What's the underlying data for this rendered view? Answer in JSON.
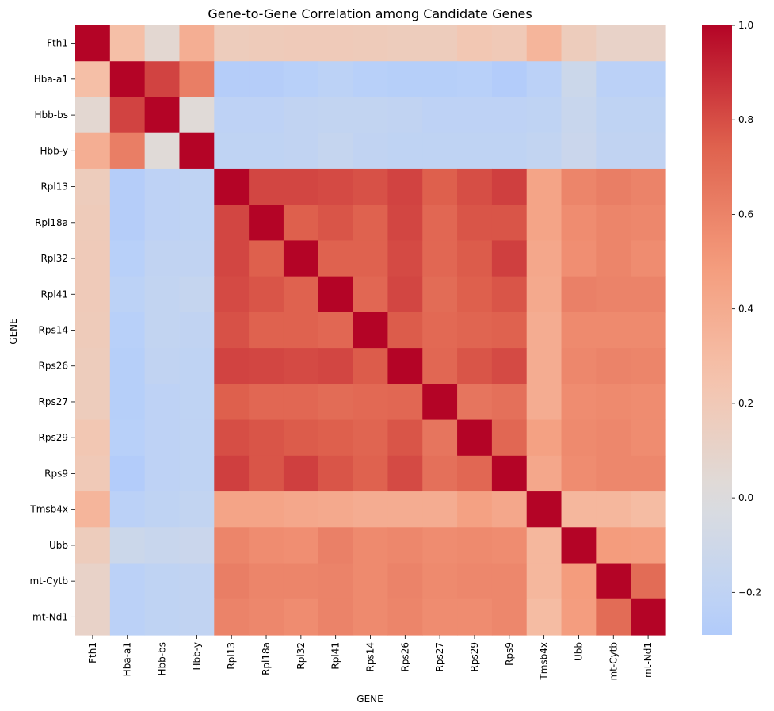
{
  "chart_data": {
    "type": "heatmap",
    "title": "Gene-to-Gene Correlation among Candidate Genes",
    "xlabel": "GENE",
    "ylabel": "GENE",
    "colormap": "coolwarm",
    "vmin": -0.29,
    "vmax": 1.0,
    "colorbar_ticks": [
      -0.2,
      0.0,
      0.2,
      0.4,
      0.6,
      0.8,
      1.0
    ],
    "colorbar_tick_labels": [
      "−0.2",
      "0.0",
      "0.2",
      "0.4",
      "0.6",
      "0.8",
      "1.0"
    ],
    "genes": [
      "Fth1",
      "Hba-a1",
      "Hbb-bs",
      "Hbb-y",
      "Rpl13",
      "Rpl18a",
      "Rpl32",
      "Rpl41",
      "Rps14",
      "Rps26",
      "Rps27",
      "Rps29",
      "Rps9",
      "Tmsb4x",
      "Ubb",
      "mt-Cytb",
      "mt-Nd1"
    ],
    "matrix": [
      [
        1.0,
        0.28,
        0.06,
        0.38,
        0.17,
        0.18,
        0.19,
        0.19,
        0.18,
        0.17,
        0.17,
        0.22,
        0.2,
        0.34,
        0.17,
        0.11,
        0.11
      ],
      [
        0.28,
        1.0,
        0.83,
        0.62,
        -0.27,
        -0.27,
        -0.25,
        -0.22,
        -0.25,
        -0.26,
        -0.26,
        -0.25,
        -0.28,
        -0.23,
        -0.12,
        -0.23,
        -0.23
      ],
      [
        0.06,
        0.83,
        1.0,
        0.03,
        -0.21,
        -0.21,
        -0.19,
        -0.18,
        -0.18,
        -0.19,
        -0.21,
        -0.21,
        -0.21,
        -0.2,
        -0.14,
        -0.2,
        -0.2
      ],
      [
        0.38,
        0.62,
        0.03,
        1.0,
        -0.2,
        -0.2,
        -0.19,
        -0.16,
        -0.19,
        -0.2,
        -0.2,
        -0.2,
        -0.2,
        -0.18,
        -0.13,
        -0.19,
        -0.19
      ],
      [
        0.17,
        -0.27,
        -0.21,
        -0.2,
        1.0,
        0.82,
        0.82,
        0.81,
        0.79,
        0.83,
        0.75,
        0.8,
        0.84,
        0.44,
        0.59,
        0.62,
        0.6
      ],
      [
        0.18,
        -0.27,
        -0.21,
        -0.2,
        0.82,
        1.0,
        0.75,
        0.78,
        0.74,
        0.82,
        0.72,
        0.78,
        0.78,
        0.44,
        0.56,
        0.59,
        0.58
      ],
      [
        0.19,
        -0.25,
        -0.19,
        -0.19,
        0.82,
        0.75,
        1.0,
        0.74,
        0.74,
        0.81,
        0.72,
        0.76,
        0.84,
        0.42,
        0.55,
        0.59,
        0.56
      ],
      [
        0.19,
        -0.22,
        -0.18,
        -0.16,
        0.81,
        0.78,
        0.74,
        1.0,
        0.72,
        0.82,
        0.7,
        0.75,
        0.78,
        0.41,
        0.61,
        0.6,
        0.6
      ],
      [
        0.18,
        -0.25,
        -0.18,
        -0.19,
        0.79,
        0.74,
        0.74,
        0.72,
        1.0,
        0.76,
        0.71,
        0.73,
        0.74,
        0.39,
        0.57,
        0.57,
        0.57
      ],
      [
        0.17,
        -0.26,
        -0.19,
        -0.2,
        0.83,
        0.82,
        0.81,
        0.82,
        0.76,
        1.0,
        0.72,
        0.78,
        0.81,
        0.39,
        0.58,
        0.6,
        0.59
      ],
      [
        0.17,
        -0.26,
        -0.21,
        -0.2,
        0.75,
        0.72,
        0.72,
        0.7,
        0.71,
        0.72,
        1.0,
        0.66,
        0.68,
        0.39,
        0.56,
        0.57,
        0.56
      ],
      [
        0.22,
        -0.25,
        -0.21,
        -0.2,
        0.8,
        0.78,
        0.76,
        0.75,
        0.73,
        0.78,
        0.66,
        1.0,
        0.72,
        0.46,
        0.57,
        0.58,
        0.56
      ],
      [
        0.2,
        -0.28,
        -0.21,
        -0.2,
        0.84,
        0.78,
        0.84,
        0.78,
        0.74,
        0.81,
        0.68,
        0.72,
        1.0,
        0.42,
        0.56,
        0.58,
        0.58
      ],
      [
        0.34,
        -0.23,
        -0.2,
        -0.18,
        0.44,
        0.44,
        0.42,
        0.41,
        0.39,
        0.39,
        0.39,
        0.46,
        0.42,
        1.0,
        0.33,
        0.33,
        0.3
      ],
      [
        0.17,
        -0.12,
        -0.14,
        -0.13,
        0.59,
        0.56,
        0.55,
        0.61,
        0.57,
        0.58,
        0.56,
        0.57,
        0.56,
        0.33,
        1.0,
        0.49,
        0.48
      ],
      [
        0.11,
        -0.23,
        -0.2,
        -0.19,
        0.62,
        0.59,
        0.59,
        0.6,
        0.57,
        0.6,
        0.57,
        0.58,
        0.58,
        0.33,
        0.49,
        1.0,
        0.7
      ],
      [
        0.11,
        -0.23,
        -0.2,
        -0.19,
        0.6,
        0.58,
        0.56,
        0.6,
        0.57,
        0.59,
        0.56,
        0.56,
        0.58,
        0.3,
        0.48,
        0.7,
        1.0
      ]
    ]
  }
}
